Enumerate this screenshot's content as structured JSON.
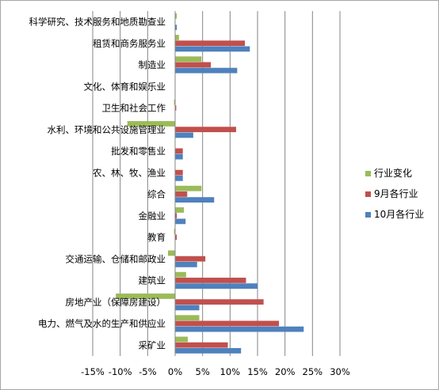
{
  "chart_data": {
    "type": "bar",
    "orientation": "horizontal",
    "title": "",
    "xlabel": "",
    "ylabel": "",
    "xlim": [
      -0.15,
      0.3
    ],
    "x_ticks": [
      -0.15,
      -0.1,
      -0.05,
      0,
      0.05,
      0.1,
      0.15,
      0.2,
      0.25,
      0.3
    ],
    "x_tick_labels": [
      "-15%",
      "-10%",
      "-5%",
      "0%",
      "5%",
      "10%",
      "15%",
      "20%",
      "25%",
      "30%"
    ],
    "grid": true,
    "legend_position": "right",
    "categories": [
      "科学研究、技术服务和地质勘查业",
      "租赁和商务服务业",
      "制造业",
      "文化、体育和娱乐业",
      "卫生和社会工作",
      "水利、环境和公共设施管理业",
      "批发和零售业",
      "农、林、牧、渔业",
      "综合",
      "金融业",
      "教育",
      "交通运输、仓储和邮政业",
      "建筑业",
      "房地产业（保障房建设）",
      "电力、燃气及水的生产和供应业",
      "采矿业"
    ],
    "series": [
      {
        "name": "行业变化",
        "color": "#9bbb59",
        "values": [
          0.003,
          0.007,
          0.048,
          0.0,
          -0.002,
          -0.087,
          0.0,
          0.0,
          0.048,
          0.016,
          -0.002,
          -0.013,
          0.02,
          -0.108,
          0.044,
          0.023
        ]
      },
      {
        "name": "9月各行业",
        "color": "#c0504d",
        "values": [
          0.0,
          0.127,
          0.065,
          0.0,
          0.002,
          0.111,
          0.014,
          0.014,
          0.022,
          0.003,
          0.003,
          0.055,
          0.129,
          0.161,
          0.189,
          0.096
        ]
      },
      {
        "name": "10月各行业",
        "color": "#4f81bd",
        "values": [
          0.003,
          0.136,
          0.113,
          0.0,
          0.0,
          0.033,
          0.014,
          0.014,
          0.071,
          0.019,
          0.0,
          0.04,
          0.15,
          0.044,
          0.234,
          0.12
        ]
      }
    ]
  }
}
